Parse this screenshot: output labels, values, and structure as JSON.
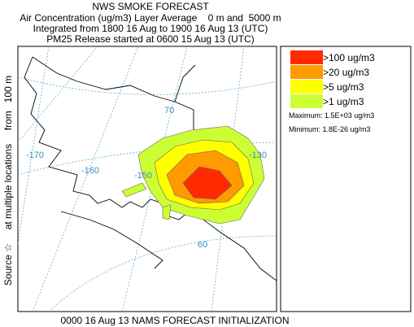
{
  "header": {
    "title": "NWS SMOKE FORECAST",
    "lines": [
      "Air Concentration (ug/m3) Layer Average    0 m and  5000 m",
      "Integrated from 1800 16 Aug to 1900 16 Aug 13 (UTC)",
      "PM25 Release started at 0600 15 Aug 13 (UTC)"
    ]
  },
  "legend": {
    "items": [
      {
        "label": ">100 ug/m3",
        "color": "#ff2a00"
      },
      {
        "label": ">20 ug/m3",
        "color": "#ff9a00"
      },
      {
        "label": ">5 ug/m3",
        "color": "#ffff00"
      },
      {
        "label": ">1 ug/m3",
        "color": "#ccff33"
      }
    ],
    "maximum": "Maximum: 1.5E+03 ug/m3",
    "minimum": "Minimum: 1.8E-26 ug/m3"
  },
  "side_label": "Source ☆     at multiple locations     from   100 m",
  "footer": "0000 16 Aug 13 NAMS FORECAST INITIALIZATION",
  "map_labels": [
    "-170",
    "-160",
    "-150",
    "70",
    "60",
    "-130"
  ]
}
